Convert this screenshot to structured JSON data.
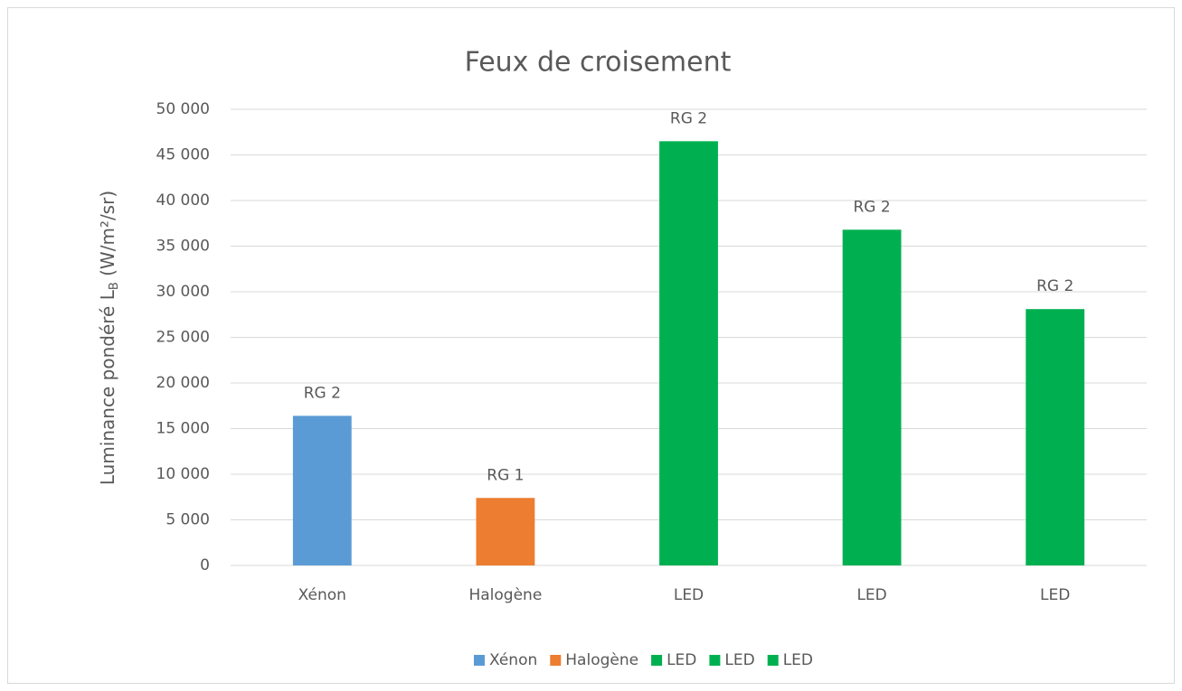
{
  "chart_data": {
    "type": "bar",
    "title": "Feux de croisement",
    "ylabel": [
      "Luminance pondéré L",
      "B",
      " (W/m²/sr)"
    ],
    "categories": [
      "Xénon",
      "Halogène",
      "LED",
      "LED",
      "LED"
    ],
    "values": [
      16400,
      7400,
      46500,
      36800,
      28100
    ],
    "colors": [
      "#5b9bd5",
      "#ed7d31",
      "#00b050",
      "#00b050",
      "#00b050"
    ],
    "annotations": [
      "RG 2",
      "RG 1",
      "RG 2",
      "RG 2",
      "RG 2"
    ],
    "ylim": [
      0,
      50000
    ],
    "yticks": [
      0,
      {
        "value": 5000,
        "label": "5 000"
      },
      {
        "value": 10000,
        "label": "10 000"
      },
      {
        "value": 15000,
        "label": "15 000"
      },
      {
        "value": 20000,
        "label": "20 000"
      },
      {
        "value": 25000,
        "label": "25 000"
      },
      {
        "value": 30000,
        "label": "30 000"
      },
      {
        "value": 35000,
        "label": "35 000"
      },
      {
        "value": 40000,
        "label": "40 000"
      },
      {
        "value": 45000,
        "label": "45 000"
      },
      {
        "value": 50000,
        "label": "50 000"
      }
    ],
    "grid": true,
    "legend": "bottom"
  }
}
